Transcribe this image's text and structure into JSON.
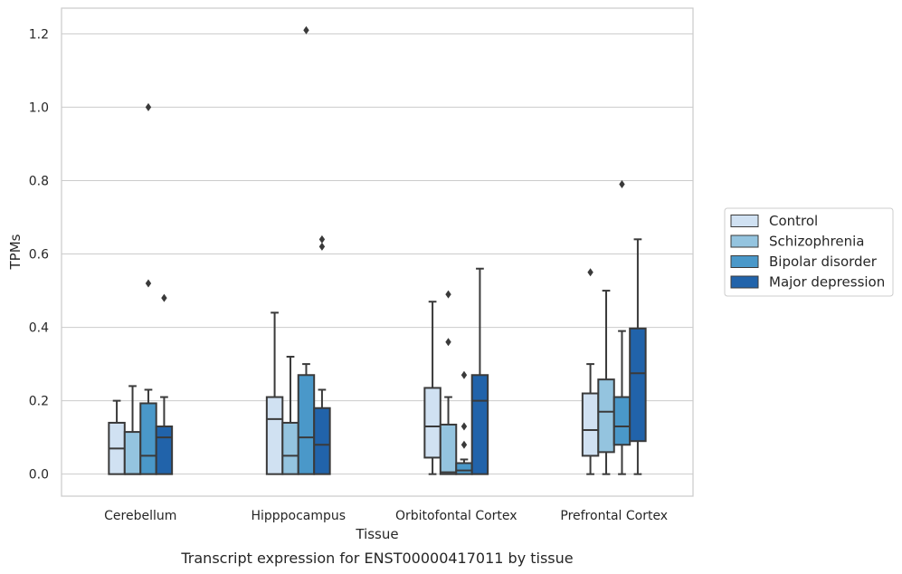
{
  "chart_data": {
    "type": "box",
    "title": "",
    "caption": "Transcript expression for ENST00000417011 by tissue",
    "xlabel": "Tissue",
    "ylabel": "TPMs",
    "ylim": [
      -0.06,
      1.27
    ],
    "yticks": [
      0.0,
      0.2,
      0.4,
      0.6,
      0.8,
      1.0,
      1.2
    ],
    "ytick_labels": [
      "0.0",
      "0.2",
      "0.4",
      "0.6",
      "0.8",
      "1.0",
      "1.2"
    ],
    "grid": "horizontal",
    "legend_position": "right-center",
    "categories": [
      "Cerebellum",
      "Hipppocampus",
      "Orbitofontal Cortex",
      "Prefrontal Cortex"
    ],
    "series": [
      {
        "name": "Control",
        "color": "#d0e1f2",
        "boxes": [
          {
            "min": 0.0,
            "q1": 0.0,
            "median": 0.07,
            "q3": 0.14,
            "max": 0.2,
            "outliers": []
          },
          {
            "min": 0.0,
            "q1": 0.0,
            "median": 0.15,
            "q3": 0.21,
            "max": 0.44,
            "outliers": []
          },
          {
            "min": 0.0,
            "q1": 0.045,
            "median": 0.13,
            "q3": 0.235,
            "max": 0.47,
            "outliers": []
          },
          {
            "min": 0.0,
            "q1": 0.05,
            "median": 0.12,
            "q3": 0.22,
            "max": 0.3,
            "outliers": [
              0.55
            ]
          }
        ]
      },
      {
        "name": "Schizophrenia",
        "color": "#94c4df",
        "boxes": [
          {
            "min": 0.0,
            "q1": 0.0,
            "median": 0.0,
            "q3": 0.115,
            "max": 0.24,
            "outliers": []
          },
          {
            "min": 0.0,
            "q1": 0.0,
            "median": 0.05,
            "q3": 0.14,
            "max": 0.32,
            "outliers": []
          },
          {
            "min": 0.0,
            "q1": 0.0,
            "median": 0.005,
            "q3": 0.135,
            "max": 0.21,
            "outliers": [
              0.36,
              0.49
            ]
          },
          {
            "min": 0.0,
            "q1": 0.06,
            "median": 0.17,
            "q3": 0.258,
            "max": 0.5,
            "outliers": []
          }
        ]
      },
      {
        "name": "Bipolar disorder",
        "color": "#4a98c9",
        "boxes": [
          {
            "min": 0.0,
            "q1": 0.0,
            "median": 0.05,
            "q3": 0.193,
            "max": 0.23,
            "outliers": [
              0.52,
              1.0
            ]
          },
          {
            "min": 0.0,
            "q1": 0.0,
            "median": 0.1,
            "q3": 0.27,
            "max": 0.3,
            "outliers": [
              1.21
            ]
          },
          {
            "min": 0.0,
            "q1": 0.0,
            "median": 0.01,
            "q3": 0.03,
            "max": 0.04,
            "outliers": [
              0.08,
              0.13,
              0.27
            ]
          },
          {
            "min": 0.0,
            "q1": 0.08,
            "median": 0.13,
            "q3": 0.21,
            "max": 0.39,
            "outliers": [
              0.79
            ]
          }
        ]
      },
      {
        "name": "Major depression",
        "color": "#2163aa",
        "boxes": [
          {
            "min": 0.0,
            "q1": 0.0,
            "median": 0.1,
            "q3": 0.13,
            "max": 0.21,
            "outliers": [
              0.48
            ]
          },
          {
            "min": 0.0,
            "q1": 0.0,
            "median": 0.08,
            "q3": 0.18,
            "max": 0.23,
            "outliers": [
              0.62,
              0.64
            ]
          },
          {
            "min": 0.0,
            "q1": 0.0,
            "median": 0.2,
            "q3": 0.27,
            "max": 0.56,
            "outliers": []
          },
          {
            "min": 0.0,
            "q1": 0.09,
            "median": 0.275,
            "q3": 0.397,
            "max": 0.64,
            "outliers": []
          }
        ]
      }
    ]
  }
}
